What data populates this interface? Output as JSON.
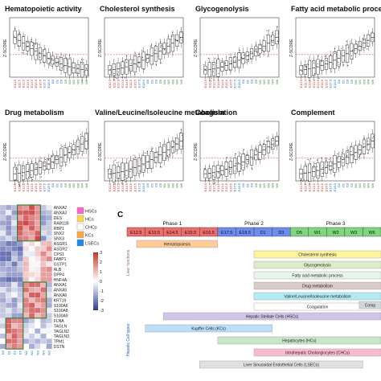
{
  "colors": {
    "heat_high": "#c0392b",
    "heat_low": "#2c3e90",
    "cluster_box": "#2e7d32",
    "threshold_line": "#d32f2f",
    "outlier": "#333333"
  },
  "panelA": {
    "stages": [
      "E10.5",
      "E11.5",
      "E12.5",
      "E13.5",
      "E14.5",
      "E15.5",
      "E16.5",
      "E17.5",
      "E18.5",
      "D0",
      "D1",
      "D3",
      "D5",
      "W1",
      "W2",
      "W3",
      "W4",
      "W6"
    ],
    "ylabel": "Z-SCORE",
    "panels": [
      {
        "title": "Hematopoietic activity",
        "trend": "down"
      },
      {
        "title": "Cholesterol synthesis",
        "trend": "up"
      },
      {
        "title": "Glycogenolysis",
        "trend": "up"
      },
      {
        "title": "Fatty acid metabolic proces",
        "trend": "up"
      },
      {
        "title": "Drug metabolism",
        "trend": "up"
      },
      {
        "title": "Valine/Leucine/Isoleucine metabolism",
        "trend": "up"
      },
      {
        "title": "Coagulation",
        "trend": "up"
      },
      {
        "title": "Complement",
        "trend": "up"
      }
    ]
  },
  "panelB": {
    "genes": [
      "ANXA2",
      "ANXA3",
      "DES",
      "RAB11B",
      "RBP1",
      "SNX2",
      "SNX3",
      "ASGR1",
      "ASGR2",
      "CPS1",
      "FABP1",
      "GSTP1",
      "ALB",
      "DPP4",
      "HNF4A",
      "ANXA1",
      "ANXA5",
      "ANXA6",
      "KRT19",
      "S100A6",
      "S100A8",
      "S100A9",
      "FLNA",
      "TAGLN",
      "TAGLN2",
      "TAGLN3",
      "TPM1",
      "DSTN"
    ],
    "legend": [
      "HSCs",
      "HCs",
      "CHCs",
      "KCs",
      "LSECs"
    ],
    "legend_colors": [
      "#ff66cc",
      "#ffd54f",
      "#ffffff",
      "#ffab40",
      "#1e88e5"
    ],
    "scale": [
      "3",
      "2",
      "1",
      "0",
      "-1",
      "-2",
      "-3"
    ],
    "columns": [
      "D0",
      "D1",
      "D3",
      "D5",
      "W1",
      "W2",
      "W3",
      "W4",
      "W6"
    ]
  },
  "panelC": {
    "letter": "C",
    "phases": [
      "Phase 1",
      "Phase 2",
      "Phase 3"
    ],
    "stages": [
      "E12.5",
      "E13.5",
      "E14.5",
      "E15.5",
      "E16.5",
      "E17.5",
      "E18.5",
      "D1",
      "D3",
      "D5",
      "W1",
      "W2",
      "W3",
      "W6"
    ],
    "side_labels": [
      "Liver functions",
      "Hepatic Cell types"
    ],
    "function_bars": [
      {
        "label": "Hematopoiesis",
        "color": "#ffcc99",
        "start": 0,
        "end": 5
      },
      {
        "label": "Cholesterol synthesis",
        "color": "#fff59d",
        "start": 7,
        "end": 14
      },
      {
        "label": "Glycogenolysis",
        "color": "#dcedc8",
        "start": 7,
        "end": 14
      },
      {
        "label": "Fatty acid metabolic process",
        "color": "#e8f5e9",
        "start": 7,
        "end": 14
      },
      {
        "label": "Drug metabolism",
        "color": "#d7ccc8",
        "start": 7,
        "end": 14
      },
      {
        "label": "Valine/Leucine/Isoleucine metabolism",
        "color": "#b2ebf2",
        "start": 7,
        "end": 14
      },
      {
        "label": "Coagulation",
        "color": "#ffffff",
        "start": 7,
        "end": 14
      },
      {
        "label": "Comp",
        "color": "#cfd8dc",
        "start": 12.8,
        "end": 14
      }
    ],
    "cell_bars": [
      {
        "label": "Hepatic Stellate Cells (HSCs)",
        "color": "#d1c4e9",
        "start": 2,
        "end": 14
      },
      {
        "label": "Kupffer Cells (KCs)",
        "color": "#bbdefb",
        "start": 1,
        "end": 8
      },
      {
        "label": "Hepatocytes (HCs)",
        "color": "#c8e6c9",
        "start": 5,
        "end": 14
      },
      {
        "label": "Intrahepatic Cholangiocytes (CHCs)",
        "color": "#f8bbd0",
        "start": 7,
        "end": 14
      },
      {
        "label": "Liver Sinusoidal Endothelial Cells (LSECs)",
        "color": "#e0e0e0",
        "start": 4,
        "end": 13
      }
    ]
  }
}
